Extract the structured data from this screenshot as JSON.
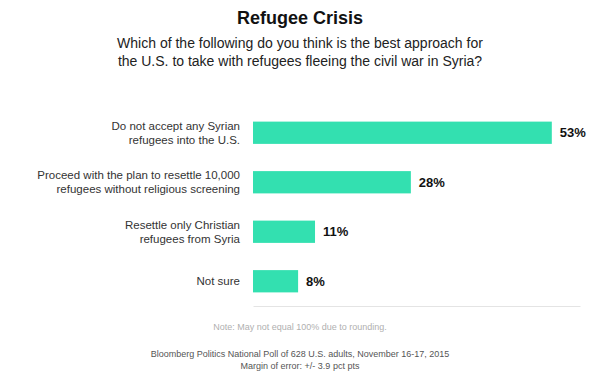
{
  "chart_data": {
    "type": "bar",
    "orientation": "horizontal",
    "title": "Refugee Crisis",
    "subtitle": "Which of the following do you think is the best approach for\nthe U.S. to take with refugees fleeing the civil war in Syria?",
    "categories": [
      "Do not accept any Syrian\nrefugees into the U.S.",
      "Proceed with the plan to resettle 10,000\nrefugees without religious screening",
      "Resettle only Christian\nrefugees from Syria",
      "Not sure"
    ],
    "values": [
      53,
      28,
      11,
      8
    ],
    "value_labels": [
      "53%",
      "28%",
      "11%",
      "8%"
    ],
    "data_labels": true,
    "color": "#33e0b0",
    "xlim": [
      0,
      58
    ],
    "tick_labels": false,
    "grid": false,
    "note": "Note: May not equal 100% due to rounding.",
    "source": "Bloomberg Politics National Poll of 628 U.S. adults, November 16-17, 2015",
    "margin_of_error": "Margin of error: +/- 3.9 pct pts"
  }
}
